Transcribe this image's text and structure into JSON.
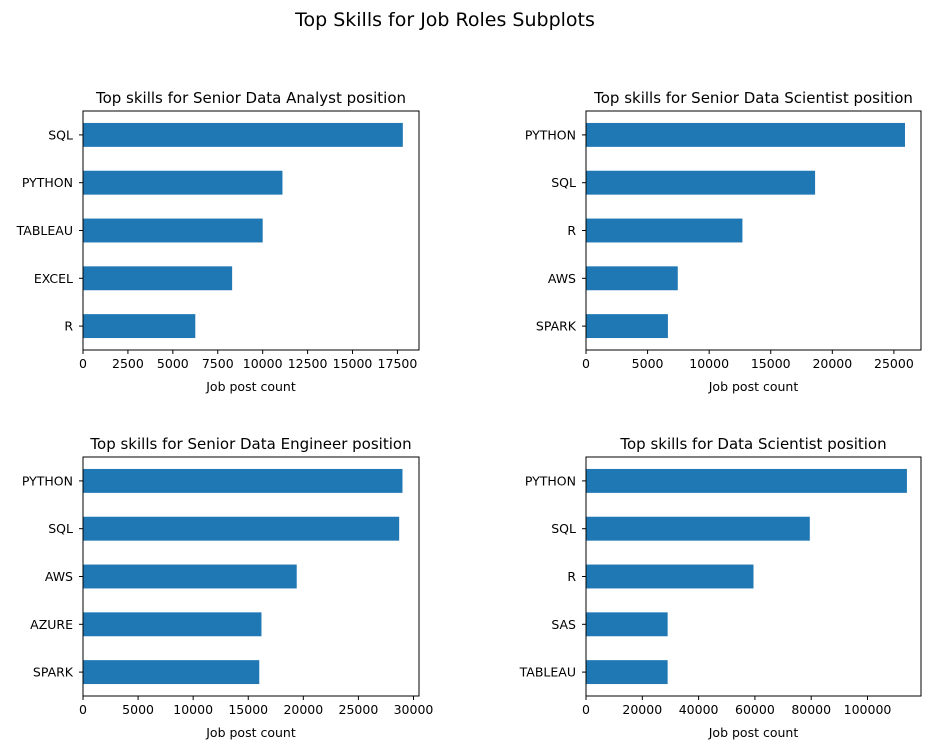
{
  "figure": {
    "suptitle": "Top Skills for Job Roles Subplots",
    "bar_color": "#1f77b4"
  },
  "chart_data": [
    {
      "type": "bar",
      "orientation": "horizontal",
      "title": "Top skills for Senior Data Analyst position",
      "xlabel": "Job post count",
      "ylabel": "",
      "categories": [
        "SQL",
        "PYTHON",
        "TABLEAU",
        "EXCEL",
        "R"
      ],
      "values": [
        17800,
        11100,
        10000,
        8300,
        6250
      ],
      "xlim": [
        0,
        18700
      ],
      "xticks": [
        0,
        2500,
        5000,
        7500,
        10000,
        12500,
        15000,
        17500
      ],
      "xtick_labels": [
        "0",
        "2500",
        "5000",
        "7500",
        "10000",
        "12500",
        "15000",
        "17500"
      ],
      "grid": false,
      "legend": "none"
    },
    {
      "type": "bar",
      "orientation": "horizontal",
      "title": "Top skills for Senior Data Scientist position",
      "xlabel": "Job post count",
      "ylabel": "",
      "categories": [
        "PYTHON",
        "SQL",
        "R",
        "AWS",
        "SPARK"
      ],
      "values": [
        25900,
        18600,
        12700,
        7450,
        6650
      ],
      "xlim": [
        0,
        27200
      ],
      "xticks": [
        0,
        5000,
        10000,
        15000,
        20000,
        25000
      ],
      "xtick_labels": [
        "0",
        "5000",
        "10000",
        "15000",
        "20000",
        "25000"
      ],
      "grid": false,
      "legend": "none"
    },
    {
      "type": "bar",
      "orientation": "horizontal",
      "title": "Top skills for Senior Data Engineer position",
      "xlabel": "Job post count",
      "ylabel": "",
      "categories": [
        "PYTHON",
        "SQL",
        "AWS",
        "AZURE",
        "SPARK"
      ],
      "values": [
        29000,
        28700,
        19400,
        16200,
        16000
      ],
      "xlim": [
        0,
        30500
      ],
      "xticks": [
        0,
        5000,
        10000,
        15000,
        20000,
        25000,
        30000
      ],
      "xtick_labels": [
        "0",
        "5000",
        "10000",
        "15000",
        "20000",
        "25000",
        "30000"
      ],
      "grid": false,
      "legend": "none"
    },
    {
      "type": "bar",
      "orientation": "horizontal",
      "title": "Top skills for Data Scientist position",
      "xlabel": "Job post count",
      "ylabel": "",
      "categories": [
        "PYTHON",
        "SQL",
        "R",
        "SAS",
        "TABLEAU"
      ],
      "values": [
        114000,
        79500,
        59500,
        29000,
        29000
      ],
      "xlim": [
        0,
        119000
      ],
      "xticks": [
        0,
        20000,
        40000,
        60000,
        80000,
        100000
      ],
      "xtick_labels": [
        "0",
        "20000",
        "40000",
        "60000",
        "80000",
        "100000"
      ],
      "grid": false,
      "legend": "none"
    }
  ]
}
